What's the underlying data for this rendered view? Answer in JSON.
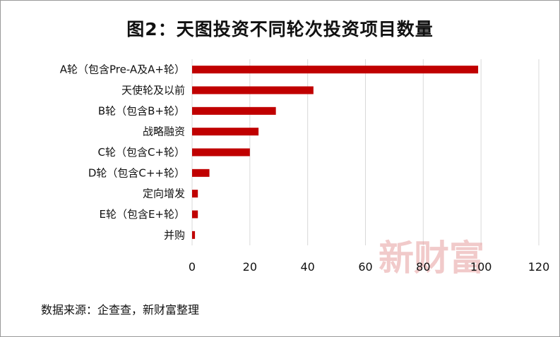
{
  "chart_data": {
    "type": "bar",
    "orientation": "horizontal",
    "title": "图2：天图投资不同轮次投资项目数量",
    "categories": [
      "A轮（包含Pre-A及A+轮）",
      "天使轮及以前",
      "B轮（包含B+轮）",
      "战略融资",
      "C轮（包含C+轮）",
      "D轮（包含C++轮）",
      "定向增发",
      "E轮（包含E+轮）",
      "并购"
    ],
    "values": [
      99,
      42,
      29,
      23,
      20,
      6,
      2,
      2,
      1
    ],
    "xlim": [
      0,
      120
    ],
    "xticks": [
      "0",
      "20",
      "40",
      "60",
      "80",
      "100",
      "120"
    ],
    "grid": "vertical",
    "bar_color": "#c00000",
    "gridline_color": "#d9d9d9"
  },
  "source": "数据来源：企查查，新财富整理",
  "watermark": "新财富"
}
